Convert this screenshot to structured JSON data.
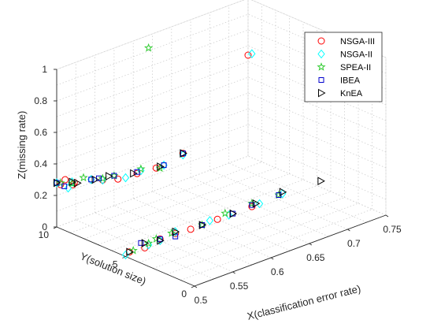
{
  "chart_data": {
    "type": "scatter",
    "title": "",
    "view": "3d",
    "xlabel": "X(classification error rate)",
    "ylabel": "Y(solution size)",
    "zlabel": "Z(missing rate)",
    "xlim": [
      0.5,
      0.75
    ],
    "ylim": [
      0,
      10
    ],
    "zlim": [
      0,
      1
    ],
    "x_ticks": [
      "0.5",
      "0.55",
      "0.6",
      "0.65",
      "0.7",
      "0.75"
    ],
    "y_ticks": [
      "0",
      "5",
      "10"
    ],
    "z_ticks": [
      "0",
      "0.2",
      "0.4",
      "0.6",
      "0.8",
      "1"
    ],
    "grid": true,
    "legend_position": "top-right",
    "series": [
      {
        "name": "NSGA-III",
        "marker": "circle",
        "color": "#ff0000",
        "points": [
          {
            "x": 0.511,
            "y": 10,
            "z": 0.28
          },
          {
            "x": 0.505,
            "y": 10,
            "z": 0.26
          },
          {
            "x": 0.521,
            "y": 10,
            "z": 0.23
          },
          {
            "x": 0.523,
            "y": 10,
            "z": 0.24
          },
          {
            "x": 0.56,
            "y": 10,
            "z": 0.19
          },
          {
            "x": 0.58,
            "y": 10,
            "z": 0.16
          },
          {
            "x": 0.605,
            "y": 10,
            "z": 0.15
          },
          {
            "x": 0.63,
            "y": 10,
            "z": 0.14
          },
          {
            "x": 0.665,
            "y": 10,
            "z": 0.17
          },
          {
            "x": 0.505,
            "y": 5,
            "z": 0.02
          },
          {
            "x": 0.525,
            "y": 5,
            "z": 0.01
          },
          {
            "x": 0.545,
            "y": 5,
            "z": 0.03
          },
          {
            "x": 0.565,
            "y": 5,
            "z": 0.03
          },
          {
            "x": 0.585,
            "y": 5,
            "z": 0.02
          },
          {
            "x": 0.62,
            "y": 5,
            "z": 0.02
          },
          {
            "x": 0.665,
            "y": 5,
            "z": 0.02
          },
          {
            "x": 0.75,
            "y": 10,
            "z": 0.64
          }
        ]
      },
      {
        "name": "NSGA-II",
        "marker": "diamond",
        "color": "#00ffff",
        "points": [
          {
            "x": 0.5,
            "y": 10,
            "z": 0.28
          },
          {
            "x": 0.515,
            "y": 10,
            "z": 0.22
          },
          {
            "x": 0.52,
            "y": 10,
            "z": 0.25
          },
          {
            "x": 0.545,
            "y": 10,
            "z": 0.22
          },
          {
            "x": 0.56,
            "y": 10,
            "z": 0.19
          },
          {
            "x": 0.59,
            "y": 10,
            "z": 0.15
          },
          {
            "x": 0.61,
            "y": 10,
            "z": 0.16
          },
          {
            "x": 0.64,
            "y": 10,
            "z": 0.14
          },
          {
            "x": 0.665,
            "y": 10,
            "z": 0.16
          },
          {
            "x": 0.5,
            "y": 5,
            "z": 0.01
          },
          {
            "x": 0.53,
            "y": 5,
            "z": 0.02
          },
          {
            "x": 0.545,
            "y": 5,
            "z": 0.02
          },
          {
            "x": 0.565,
            "y": 5,
            "z": 0.04
          },
          {
            "x": 0.61,
            "y": 5,
            "z": 0.03
          },
          {
            "x": 0.635,
            "y": 5,
            "z": 0.02
          },
          {
            "x": 0.675,
            "y": 5,
            "z": 0.02
          },
          {
            "x": 0.705,
            "y": 5,
            "z": 0.03
          },
          {
            "x": 0.755,
            "y": 10,
            "z": 0.64
          }
        ]
      },
      {
        "name": "SPEA-II",
        "marker": "star",
        "color": "#33cc33",
        "points": [
          {
            "x": 0.62,
            "y": 10,
            "z": 0.92
          },
          {
            "x": 0.505,
            "y": 10,
            "z": 0.27
          },
          {
            "x": 0.52,
            "y": 10,
            "z": 0.24
          },
          {
            "x": 0.535,
            "y": 10,
            "z": 0.25
          },
          {
            "x": 0.56,
            "y": 10,
            "z": 0.2
          },
          {
            "x": 0.575,
            "y": 10,
            "z": 0.19
          },
          {
            "x": 0.61,
            "y": 10,
            "z": 0.17
          },
          {
            "x": 0.635,
            "y": 10,
            "z": 0.13
          },
          {
            "x": 0.51,
            "y": 5,
            "z": 0.02
          },
          {
            "x": 0.53,
            "y": 5,
            "z": 0.03
          },
          {
            "x": 0.54,
            "y": 5,
            "z": 0.04
          },
          {
            "x": 0.56,
            "y": 5,
            "z": 0.04
          },
          {
            "x": 0.6,
            "y": 5,
            "z": 0.02
          },
          {
            "x": 0.63,
            "y": 5,
            "z": 0.04
          },
          {
            "x": 0.665,
            "y": 5,
            "z": 0.04
          },
          {
            "x": 0.7,
            "y": 5,
            "z": 0.03
          }
        ]
      },
      {
        "name": "IBEA",
        "marker": "square",
        "color": "#0000cc",
        "points": [
          {
            "x": 0.5,
            "y": 10,
            "z": 0.28
          },
          {
            "x": 0.51,
            "y": 10,
            "z": 0.24
          },
          {
            "x": 0.545,
            "y": 10,
            "z": 0.22
          },
          {
            "x": 0.555,
            "y": 10,
            "z": 0.21
          },
          {
            "x": 0.575,
            "y": 10,
            "z": 0.19
          },
          {
            "x": 0.605,
            "y": 10,
            "z": 0.16
          },
          {
            "x": 0.64,
            "y": 10,
            "z": 0.14
          },
          {
            "x": 0.665,
            "y": 10,
            "z": 0.17
          },
          {
            "x": 0.52,
            "y": 5,
            "z": 0.05
          },
          {
            "x": 0.545,
            "y": 5,
            "z": 0.03
          },
          {
            "x": 0.565,
            "y": 5,
            "z": 0.01
          },
          {
            "x": 0.6,
            "y": 5,
            "z": 0.02
          },
          {
            "x": 0.64,
            "y": 5,
            "z": 0.02
          },
          {
            "x": 0.665,
            "y": 5,
            "z": 0.03
          },
          {
            "x": 0.7,
            "y": 5,
            "z": 0.03
          }
        ]
      },
      {
        "name": "KnEA",
        "marker": "triangle-right",
        "color": "#000000",
        "points": [
          {
            "x": 0.5,
            "y": 10,
            "z": 0.28
          },
          {
            "x": 0.52,
            "y": 10,
            "z": 0.25
          },
          {
            "x": 0.527,
            "y": 10,
            "z": 0.23
          },
          {
            "x": 0.55,
            "y": 10,
            "z": 0.21
          },
          {
            "x": 0.568,
            "y": 10,
            "z": 0.2
          },
          {
            "x": 0.6,
            "y": 10,
            "z": 0.16
          },
          {
            "x": 0.635,
            "y": 10,
            "z": 0.14
          },
          {
            "x": 0.665,
            "y": 10,
            "z": 0.17
          },
          {
            "x": 0.505,
            "y": 5,
            "z": 0.02
          },
          {
            "x": 0.525,
            "y": 5,
            "z": 0.04
          },
          {
            "x": 0.545,
            "y": 5,
            "z": 0.02
          },
          {
            "x": 0.565,
            "y": 5,
            "z": 0.04
          },
          {
            "x": 0.6,
            "y": 5,
            "z": 0.02
          },
          {
            "x": 0.64,
            "y": 5,
            "z": 0.02
          },
          {
            "x": 0.67,
            "y": 5,
            "z": 0.03
          },
          {
            "x": 0.705,
            "y": 5,
            "z": 0.04
          },
          {
            "x": 0.755,
            "y": 5,
            "z": 0.02
          }
        ]
      }
    ]
  }
}
